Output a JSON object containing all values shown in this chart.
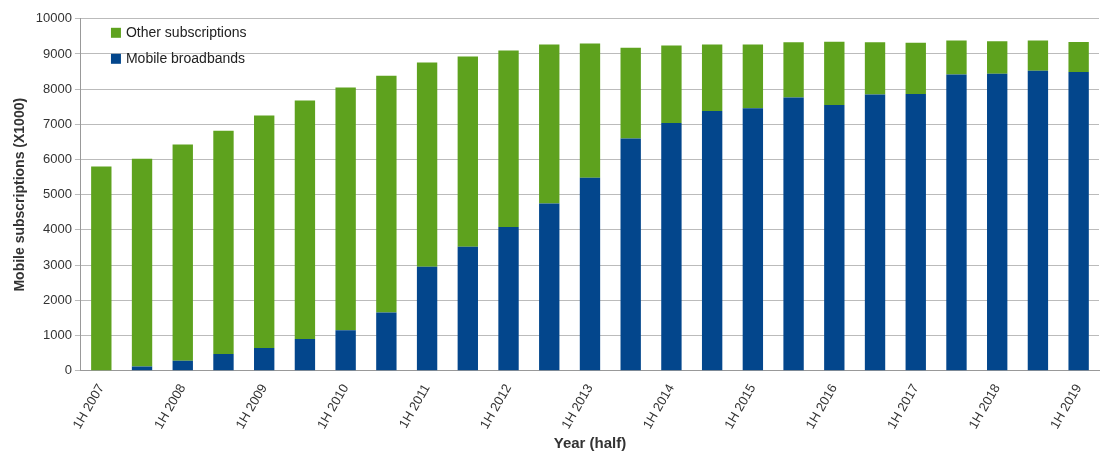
{
  "chart_data": {
    "type": "bar",
    "stacked": true,
    "xlabel": "Year (half)",
    "ylabel": "Mobile subscriptions (X1000)",
    "categories": [
      "1H 2007",
      null,
      "1H 2008",
      null,
      "1H 2009",
      null,
      "1H 2010",
      null,
      "1H 2011",
      null,
      "1H 2012",
      null,
      "1H 2013",
      null,
      "1H 2014",
      null,
      "1H 2015",
      null,
      "1H 2016",
      null,
      "1H 2017",
      null,
      "1H 2018",
      null,
      "1H 2019"
    ],
    "series": [
      {
        "name": "Mobile broadbands",
        "color": "#03468c",
        "values": [
          0,
          120,
          280,
          470,
          640,
          900,
          1150,
          1650,
          2950,
          3520,
          4080,
          4750,
          5480,
          6600,
          7040,
          7380,
          7460,
          7760,
          7550,
          7850,
          7860,
          8420,
          8440,
          8520,
          8490
        ]
      },
      {
        "name": "Other subscriptions",
        "color": "#5ea21e",
        "values": [
          5800,
          5900,
          6150,
          6350,
          6610,
          6780,
          6900,
          6730,
          5810,
          5410,
          5020,
          4520,
          3820,
          2580,
          2200,
          1890,
          1810,
          1570,
          1800,
          1480,
          1460,
          960,
          920,
          860,
          850
        ]
      }
    ],
    "ylim": [
      0,
      10000
    ],
    "yticks": [
      0,
      1000,
      2000,
      3000,
      4000,
      5000,
      6000,
      7000,
      8000,
      9000,
      10000
    ],
    "grid": "y",
    "legend": "top left"
  }
}
